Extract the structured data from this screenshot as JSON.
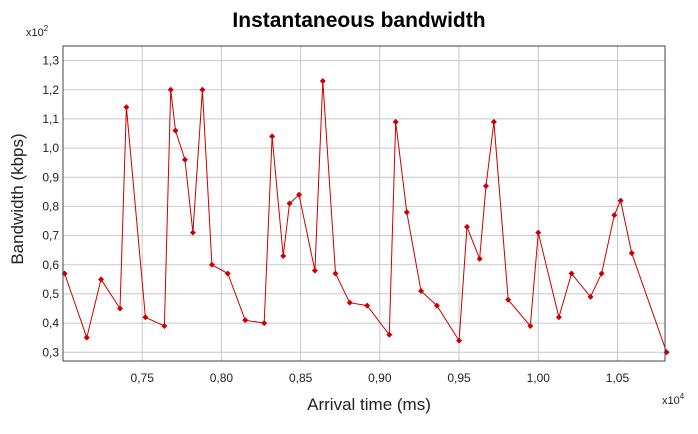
{
  "chart_data": {
    "type": "line",
    "title": "Instantaneous bandwidth",
    "xlabel": "Arrival time (ms)",
    "ylabel": "Bandwidth (kbps)",
    "x_multiplier": "x10^4",
    "y_multiplier": "x10^2",
    "xlim": [
      0.7,
      1.08
    ],
    "ylim": [
      0.27,
      1.35
    ],
    "xticks": [
      0.75,
      0.8,
      0.85,
      0.9,
      0.95,
      1.0,
      1.05
    ],
    "xtick_labels": [
      "0,75",
      "0,80",
      "0,85",
      "0,90",
      "0,95",
      "1,00",
      "1,05"
    ],
    "yticks": [
      0.3,
      0.4,
      0.5,
      0.6,
      0.7,
      0.8,
      0.9,
      1.0,
      1.1,
      1.2,
      1.3
    ],
    "ytick_labels": [
      "0,3",
      "0,4",
      "0,5",
      "0,6",
      "0,7",
      "0,8",
      "0,9",
      "1,0",
      "1,1",
      "1,2",
      "1,3"
    ],
    "grid": true,
    "series_color": "#cc0000",
    "series": [
      {
        "x": [
          0.701,
          0.715,
          0.724,
          0.736,
          0.74,
          0.752,
          0.764,
          0.768,
          0.771,
          0.777,
          0.782,
          0.788,
          0.794,
          0.804,
          0.815,
          0.827,
          0.832,
          0.839,
          0.843,
          0.849,
          0.859,
          0.864,
          0.872,
          0.881,
          0.892,
          0.906,
          0.91,
          0.917,
          0.926,
          0.936,
          0.95,
          0.955,
          0.963,
          0.967,
          0.972,
          0.981,
          0.995,
          1.0,
          1.013,
          1.021,
          1.033,
          1.04,
          1.048,
          1.052,
          1.059,
          1.081
        ],
        "y": [
          0.57,
          0.35,
          0.55,
          0.45,
          1.14,
          0.42,
          0.39,
          1.2,
          1.06,
          0.96,
          0.71,
          1.2,
          0.6,
          0.57,
          0.41,
          0.4,
          1.04,
          0.63,
          0.81,
          0.84,
          0.58,
          1.23,
          0.57,
          0.47,
          0.46,
          0.36,
          1.09,
          0.78,
          0.51,
          0.46,
          0.34,
          0.73,
          0.62,
          0.87,
          1.09,
          0.48,
          0.39,
          0.71,
          0.42,
          0.57,
          0.49,
          0.57,
          0.77,
          0.82,
          0.64,
          0.3
        ]
      }
    ]
  }
}
